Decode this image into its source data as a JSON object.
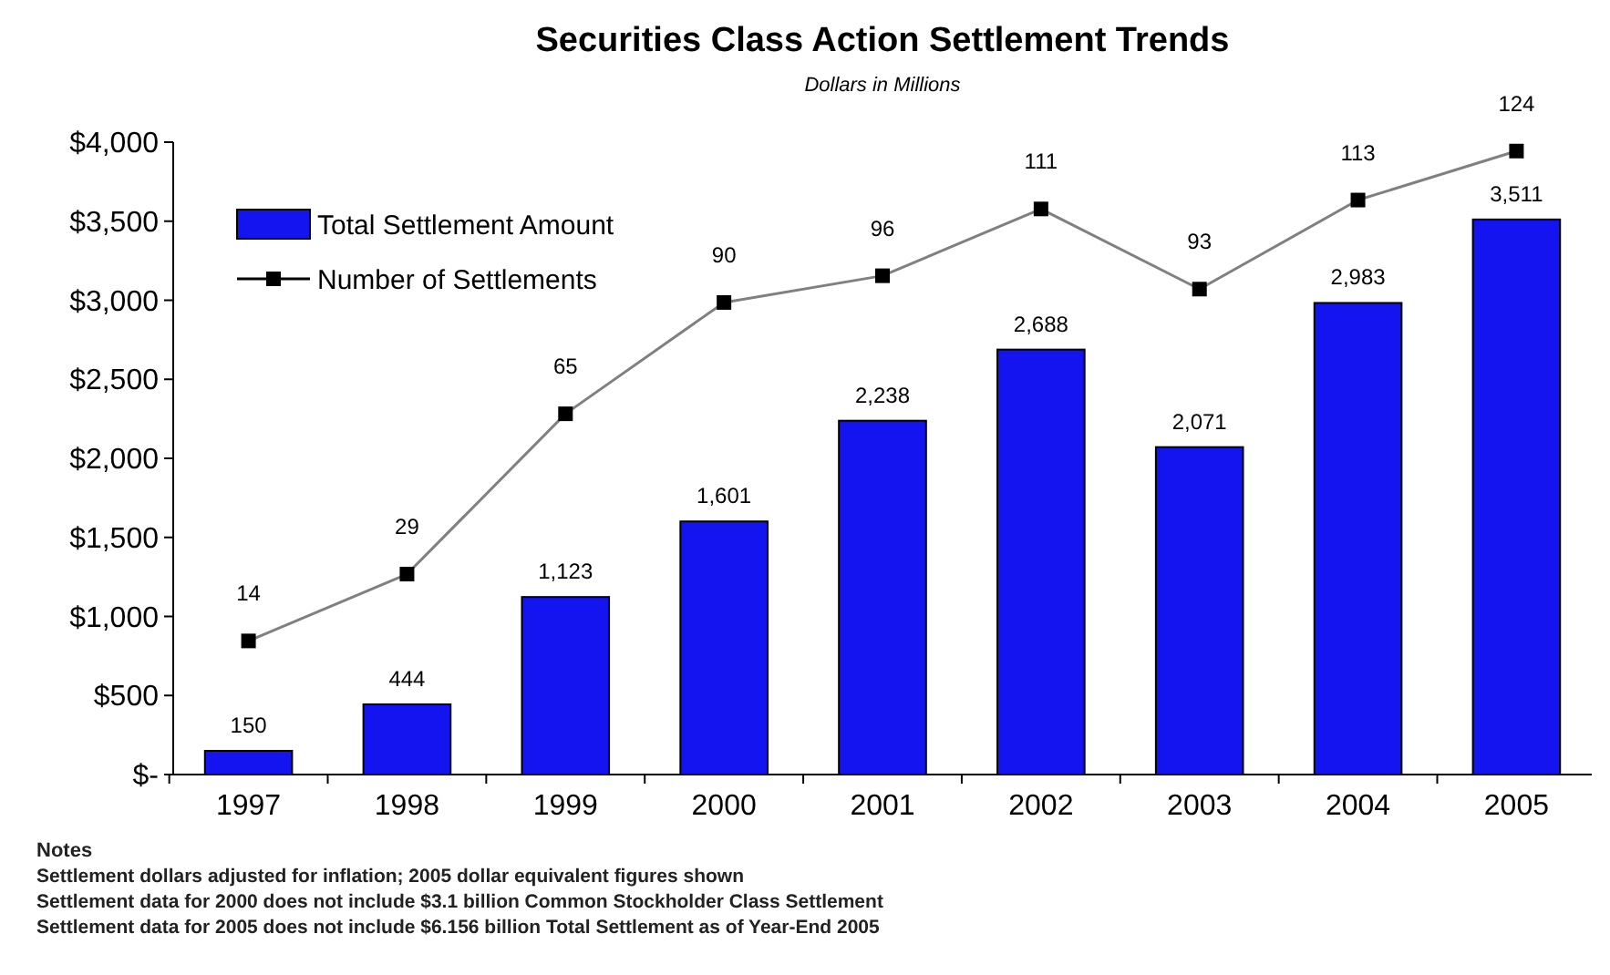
{
  "chart_data": {
    "type": "bar",
    "title": "Securities Class Action Settlement Trends",
    "subtitle": "Dollars in Millions",
    "categories": [
      "1997",
      "1998",
      "1999",
      "2000",
      "2001",
      "2002",
      "2003",
      "2004",
      "2005"
    ],
    "series": [
      {
        "name": "Total Settlement Amount",
        "color": "#1414f0",
        "values": [
          150,
          444,
          1123,
          1601,
          2238,
          2688,
          2071,
          2983,
          3511
        ],
        "value_labels": [
          "150",
          "444",
          "1,123",
          "1,601",
          "2,238",
          "2,688",
          "2,071",
          "2,983",
          "3,511"
        ]
      },
      {
        "name": "Number of Settlements",
        "type": "line",
        "axis": "y2",
        "color": "#808080",
        "marker": "square",
        "values": [
          14,
          29,
          65,
          90,
          96,
          111,
          93,
          113,
          124
        ],
        "value_labels": [
          "14",
          "29",
          "65",
          "90",
          "96",
          "111",
          "93",
          "113",
          "124"
        ]
      }
    ],
    "ylim": [
      0,
      4000
    ],
    "yticks": [
      {
        "value": 0,
        "label": "$-"
      },
      {
        "value": 500,
        "label": "$500"
      },
      {
        "value": 1000,
        "label": "$1,000"
      },
      {
        "value": 1500,
        "label": "$1,500"
      },
      {
        "value": 2000,
        "label": "$2,000"
      },
      {
        "value": 2500,
        "label": "$2,500"
      },
      {
        "value": 3000,
        "label": "$3,000"
      },
      {
        "value": 3500,
        "label": "$3,500"
      },
      {
        "value": 4000,
        "label": "$4,000"
      }
    ],
    "y2lim": [
      -16,
      126
    ],
    "grid": false,
    "legend": "top left",
    "annotations": [
      "Notes",
      "Settlement dollars adjusted for inflation; 2005 dollar equivalent figures shown",
      "Settlement data for 2000 does not include $3.1 billion Common Stockholder Class Settlement",
      "Settlement data for 2005 does not include $6.156 billion Total Settlement as of Year-End 2005"
    ]
  }
}
